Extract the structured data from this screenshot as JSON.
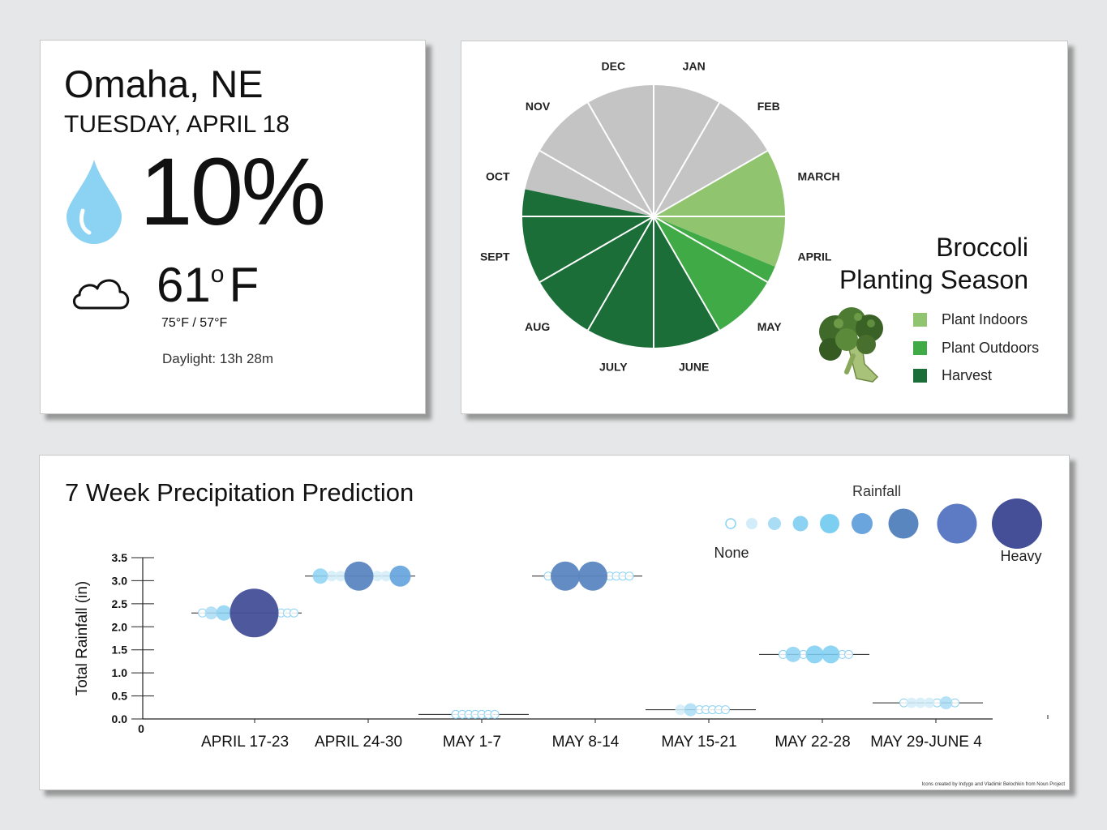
{
  "weather": {
    "city": "Omaha, NE",
    "date": "TUESDAY, APRIL 18",
    "precip_percent": "10%",
    "temperature_value": "61",
    "temperature_unit": "F",
    "high_low": "75°F / 57°F",
    "daylight": "Daylight: 13h 28m",
    "drop_icon": "raindrop-icon",
    "cloud_icon": "cloud-icon"
  },
  "season": {
    "title_line1": "Broccoli",
    "title_line2": "Planting Season",
    "image": "broccoli-icon"
  },
  "precip": {
    "title": "7 Week Precipitation Prediction",
    "rainfall_legend_title": "Rainfall",
    "rainfall_legend_low": "None",
    "rainfall_legend_high": "Heavy",
    "credit": "Icons created by Indygo and Vladimir Belochkin from Noun Project"
  },
  "chart_data": [
    {
      "type": "pie",
      "title": "Broccoli Planting Season",
      "categories": [
        "JAN",
        "FEB",
        "MARCH",
        "APRIL",
        "MAY",
        "JUNE",
        "JULY",
        "AUG",
        "SEPT",
        "OCT",
        "NOV",
        "DEC"
      ],
      "slices": [
        {
          "month": "JAN",
          "value": 1,
          "status": "None"
        },
        {
          "month": "FEB",
          "value": 1,
          "status": "None"
        },
        {
          "month": "MARCH",
          "value": 1,
          "status": "Plant Indoors"
        },
        {
          "month": "APRIL",
          "value": 0.75,
          "status": "Plant Indoors"
        },
        {
          "month": "APRIL",
          "value": 0.25,
          "status": "Plant Outdoors"
        },
        {
          "month": "MAY",
          "value": 1,
          "status": "Plant Outdoors"
        },
        {
          "month": "JUNE",
          "value": 1,
          "status": "Harvest"
        },
        {
          "month": "JULY",
          "value": 1,
          "status": "Harvest"
        },
        {
          "month": "AUG",
          "value": 1,
          "status": "Harvest"
        },
        {
          "month": "SEPT",
          "value": 1,
          "status": "Harvest"
        },
        {
          "month": "OCT",
          "value": 0.4,
          "status": "Harvest"
        },
        {
          "month": "OCT",
          "value": 0.6,
          "status": "None"
        },
        {
          "month": "NOV",
          "value": 1,
          "status": "None"
        },
        {
          "month": "DEC",
          "value": 1,
          "status": "None"
        }
      ],
      "legend": [
        {
          "label": "Plant Indoors",
          "color": "#91c46f"
        },
        {
          "label": "Plant Outdoors",
          "color": "#40ab46"
        },
        {
          "label": "Harvest",
          "color": "#1b6e37"
        }
      ],
      "none_color": "#c4c4c4"
    },
    {
      "type": "scatter",
      "title": "7 Week Precipitation Prediction",
      "xlabel": "",
      "ylabel": "Total Rainfall (in)",
      "ylim": [
        0,
        3.5
      ],
      "yticks": [
        0.0,
        0.5,
        1.0,
        1.5,
        2.0,
        2.5,
        3.0,
        3.5
      ],
      "yticks_labels": [
        "0.0",
        "0.5",
        "1.0",
        "1.5",
        "2.0",
        "2.5",
        "3.0",
        "3.5"
      ],
      "origin_label": "0",
      "categories": [
        "APRIL 17-23",
        "APRIL 24-30",
        "MAY 1-7",
        "MAY 8-14",
        "MAY 15-21",
        "MAY 22-28",
        "MAY 29-JUNE 4"
      ],
      "weekly_total": [
        2.3,
        3.1,
        0.1,
        3.1,
        0.2,
        1.4,
        0.35
      ],
      "daily_intensity": [
        [
          0,
          2,
          3,
          8,
          0,
          0,
          0
        ],
        [
          3,
          1,
          1,
          6,
          1,
          1,
          5
        ],
        [
          0,
          0,
          0,
          0,
          0,
          0,
          0
        ],
        [
          0,
          6,
          6,
          0,
          0,
          0,
          0
        ],
        [
          1,
          2,
          0,
          0,
          0,
          0,
          0
        ],
        [
          0,
          3,
          0,
          4,
          4,
          0,
          0
        ],
        [
          0,
          1,
          1,
          1,
          0,
          2,
          0
        ]
      ],
      "intensity_scale": {
        "levels": [
          0,
          1,
          2,
          3,
          4,
          5,
          6,
          7,
          8
        ],
        "colors": [
          "#ffffff",
          "#d2edf9",
          "#a9dcf5",
          "#8cd2f3",
          "#7dcff2",
          "#6aa6dd",
          "#5a86c0",
          "#5d7ac4",
          "#444f98"
        ]
      }
    }
  ]
}
